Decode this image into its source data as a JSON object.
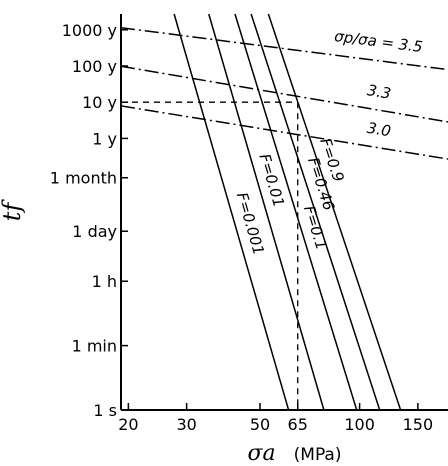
{
  "chart_data": {
    "type": "line",
    "title": "",
    "xlabel": "σa (MPa)",
    "ylabel": "tf",
    "x_scale": "log",
    "y_scale": "log",
    "x_ticks": [
      {
        "value": 20,
        "label": "20"
      },
      {
        "value": 30,
        "label": "30"
      },
      {
        "value": 50,
        "label": "50"
      },
      {
        "value": 65,
        "label": "65"
      },
      {
        "value": 100,
        "label": "100"
      },
      {
        "value": 150,
        "label": "150"
      }
    ],
    "y_ticks": [
      {
        "value_s": 1,
        "label": "1 s"
      },
      {
        "value_s": 60,
        "label": "1 min"
      },
      {
        "value_s": 3600,
        "label": "1 h"
      },
      {
        "value_s": 86400,
        "label": "1 day"
      },
      {
        "value_s": 2592000,
        "label": "1 month"
      },
      {
        "value_s": 31536000,
        "label": "1 y"
      },
      {
        "value_s": 315360000,
        "label": "10 y"
      },
      {
        "value_s": 3153600000,
        "label": "100 y"
      },
      {
        "value_s": 31536000000,
        "label": "1000 y"
      }
    ],
    "xlim": [
      19,
      185
    ],
    "ylim_s": [
      1,
      86000000000
    ],
    "series": [
      {
        "name": "F=0.001",
        "style": "solid",
        "points": [
          [
            27.5,
            86000000000
          ],
          [
            61,
            1
          ]
        ]
      },
      {
        "name": "F=0.01",
        "style": "solid",
        "points": [
          [
            35,
            86000000000
          ],
          [
            78,
            1
          ]
        ]
      },
      {
        "name": "F=0.1",
        "style": "solid",
        "points": [
          [
            42,
            86000000000
          ],
          [
            98,
            1
          ]
        ]
      },
      {
        "name": "F=0.46",
        "style": "solid",
        "points": [
          [
            47,
            86000000000
          ],
          [
            115,
            1
          ]
        ]
      },
      {
        "name": "F=0.9",
        "style": "solid",
        "points": [
          [
            53,
            86000000000
          ],
          [
            133,
            1
          ]
        ]
      },
      {
        "name": "σp/σa = 3.5",
        "style": "dashdot",
        "points": [
          [
            19,
            36000000000
          ],
          [
            185,
            2500000000
          ]
        ]
      },
      {
        "name": "3.3",
        "style": "dashdot",
        "points": [
          [
            19,
            3100000000
          ],
          [
            185,
            90000000
          ]
        ]
      },
      {
        "name": "3.0",
        "style": "dashdot",
        "points": [
          [
            19,
            250000000
          ],
          [
            185,
            8500000
          ]
        ]
      }
    ],
    "guide": {
      "x": 65,
      "y_s": 315360000,
      "style": "dashed"
    },
    "annotations": [
      {
        "text": "F=0.001",
        "series": "F=0.001"
      },
      {
        "text": "F=0.01",
        "series": "F=0.01"
      },
      {
        "text": "F=0.1",
        "series": "F=0.1"
      },
      {
        "text": "F=0.46",
        "series": "F=0.46"
      },
      {
        "text": "F=0.9",
        "series": "F=0.9"
      },
      {
        "text": "σp/σa = 3.5",
        "series": "σp/σa = 3.5"
      },
      {
        "text": "3.3",
        "series": "3.3"
      },
      {
        "text": "3.0",
        "series": "3.0"
      }
    ],
    "grid": false,
    "legend": "none"
  }
}
